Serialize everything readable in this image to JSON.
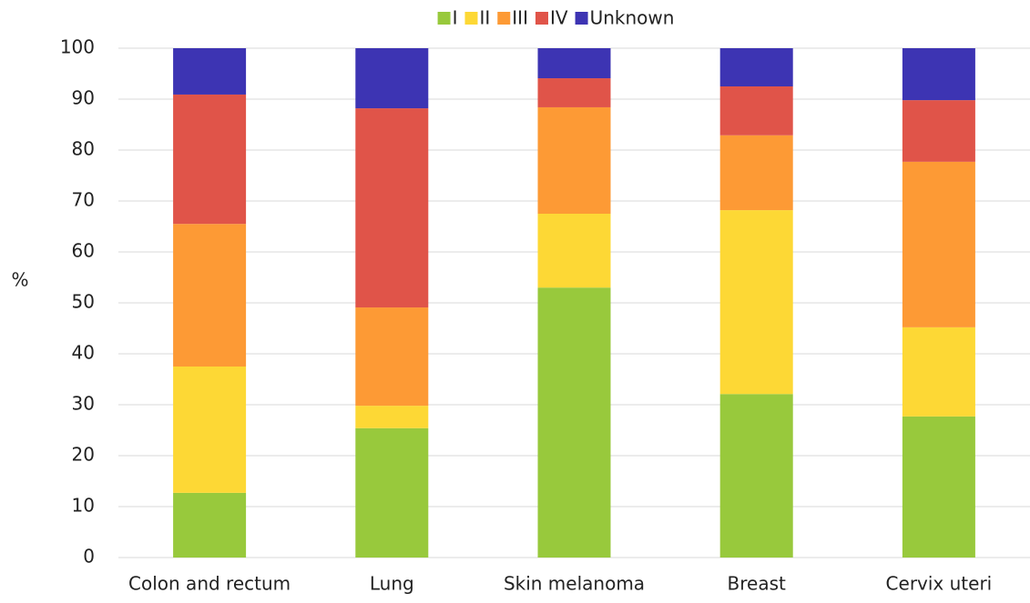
{
  "chart_data": {
    "type": "stacked_bar",
    "ylabel": "%",
    "categories": [
      "Colon and rectum",
      "Lung",
      "Skin melanoma",
      "Breast",
      "Cervix uteri"
    ],
    "series": [
      {
        "name": "I",
        "color": "#98c93c",
        "values": [
          12.7,
          25.4,
          53.0,
          32.1,
          27.7
        ]
      },
      {
        "name": "II",
        "color": "#fdd835",
        "values": [
          24.8,
          4.4,
          14.5,
          36.1,
          17.5
        ]
      },
      {
        "name": "III",
        "color": "#fd9a35",
        "values": [
          28.0,
          19.3,
          20.9,
          14.7,
          32.5
        ]
      },
      {
        "name": "IV",
        "color": "#e05449",
        "values": [
          25.4,
          39.1,
          5.7,
          9.6,
          12.1
        ]
      },
      {
        "name": "Unknown",
        "color": "#3d34b3",
        "values": [
          9.1,
          11.8,
          5.9,
          7.5,
          10.2
        ]
      }
    ],
    "ylim": [
      0,
      100
    ],
    "yticks": [
      0,
      10,
      20,
      30,
      40,
      50,
      60,
      70,
      80,
      90,
      100
    ],
    "grid": true
  }
}
